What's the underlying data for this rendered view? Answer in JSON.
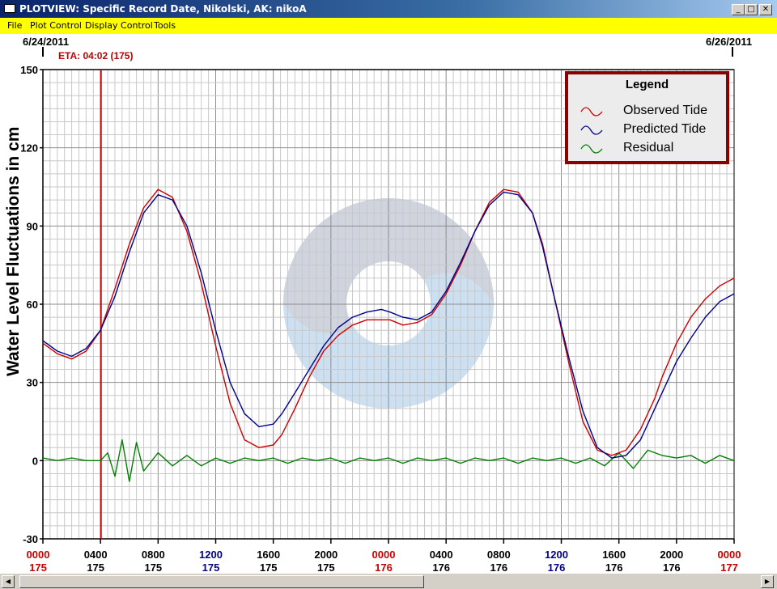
{
  "window": {
    "title": "PLOTVIEW: Specific Record Date, Nikolski, AK: nikoA",
    "buttons": {
      "minimize": "_",
      "maximize": "□",
      "close": "✕"
    }
  },
  "menu": {
    "items": [
      "File",
      "Plot Control",
      "Display Control",
      "Tools"
    ]
  },
  "header": {
    "start_date": "6/24/2011",
    "end_date": "6/26/2011",
    "eta": "ETA: 04:02 (175)"
  },
  "legend": {
    "title": "Legend",
    "entries": [
      {
        "label": "Observed Tide",
        "color": "#cc0000"
      },
      {
        "label": "Predicted Tide",
        "color": "#00008b"
      },
      {
        "label": "Residual",
        "color": "#008000"
      }
    ]
  },
  "chart_data": {
    "type": "line",
    "title": "",
    "xlabel": "",
    "ylabel": "Water Level Fluctuations in cm",
    "ylim": [
      -30,
      150
    ],
    "yticks": [
      -30,
      0,
      30,
      60,
      90,
      120,
      150
    ],
    "xlim_hours": [
      0,
      48
    ],
    "grid": true,
    "legend_position": "top-right",
    "eta_marker": {
      "hour": 4.03,
      "color": "#cc0000"
    },
    "xticks": [
      {
        "hour": 0,
        "time": "0000",
        "day": "175",
        "color": "#cc0000",
        "day_color": "#cc0000"
      },
      {
        "hour": 4,
        "time": "0400",
        "day": "175",
        "color": "#000000",
        "day_color": "#000000"
      },
      {
        "hour": 8,
        "time": "0800",
        "day": "175",
        "color": "#000000",
        "day_color": "#000000"
      },
      {
        "hour": 12,
        "time": "1200",
        "day": "175",
        "color": "#00008b",
        "day_color": "#00008b"
      },
      {
        "hour": 16,
        "time": "1600",
        "day": "175",
        "color": "#000000",
        "day_color": "#000000"
      },
      {
        "hour": 20,
        "time": "2000",
        "day": "175",
        "color": "#000000",
        "day_color": "#000000"
      },
      {
        "hour": 24,
        "time": "0000",
        "day": "176",
        "color": "#cc0000",
        "day_color": "#cc0000"
      },
      {
        "hour": 28,
        "time": "0400",
        "day": "176",
        "color": "#000000",
        "day_color": "#000000"
      },
      {
        "hour": 32,
        "time": "0800",
        "day": "176",
        "color": "#000000",
        "day_color": "#000000"
      },
      {
        "hour": 36,
        "time": "1200",
        "day": "176",
        "color": "#00008b",
        "day_color": "#00008b"
      },
      {
        "hour": 40,
        "time": "1600",
        "day": "176",
        "color": "#000000",
        "day_color": "#000000"
      },
      {
        "hour": 44,
        "time": "2000",
        "day": "176",
        "color": "#000000",
        "day_color": "#000000"
      },
      {
        "hour": 48,
        "time": "0000",
        "day": "177",
        "color": "#cc0000",
        "day_color": "#cc0000"
      }
    ],
    "series": [
      {
        "name": "Predicted Tide",
        "color": "#00008b",
        "x": [
          0,
          1,
          2,
          3,
          4,
          5,
          6,
          7,
          8,
          9,
          10,
          11,
          12,
          13,
          14,
          15,
          16,
          16.6,
          17.5,
          18.5,
          19.5,
          20.5,
          21.5,
          22.5,
          23.5,
          24.1,
          25,
          26,
          27,
          28,
          29,
          30,
          31,
          32,
          33,
          34,
          34.7,
          35.5,
          36.5,
          37.5,
          38.5,
          39.5,
          40.5,
          41.5,
          42.5,
          43,
          44,
          45,
          46,
          47,
          48
        ],
        "values": [
          46,
          42,
          40,
          43,
          50,
          63,
          80,
          95,
          102,
          100,
          90,
          72,
          50,
          30,
          18,
          13,
          14,
          18,
          26,
          35,
          44,
          51,
          55,
          57,
          58,
          57,
          55,
          54,
          57,
          65,
          76,
          88,
          98,
          103,
          102,
          95,
          82,
          63,
          40,
          19,
          5,
          1,
          2,
          8,
          20,
          26,
          38,
          47,
          55,
          61,
          64
        ]
      },
      {
        "name": "Observed Tide",
        "color": "#cc0000",
        "x": [
          0,
          1,
          2,
          3,
          4,
          5,
          6,
          7,
          8,
          9,
          10,
          11,
          12,
          13,
          14,
          15,
          16,
          16.6,
          17.5,
          18.5,
          19.5,
          20.5,
          21.5,
          22.5,
          23.5,
          24.1,
          25,
          26,
          27,
          28,
          29,
          30,
          31,
          32,
          33,
          34,
          34.7,
          35.5,
          36.5,
          37.5,
          38.5,
          39.5,
          40.5,
          41.5,
          42.5,
          43,
          44,
          45,
          46,
          47,
          48
        ],
        "values": [
          45,
          41,
          39,
          42,
          50,
          66,
          83,
          97,
          104,
          101,
          88,
          68,
          44,
          22,
          8,
          5,
          6,
          10,
          20,
          32,
          42,
          48,
          52,
          54,
          54,
          54,
          52,
          53,
          56,
          64,
          75,
          88,
          99,
          104,
          103,
          95,
          83,
          63,
          38,
          15,
          4,
          2,
          4,
          12,
          24,
          32,
          45,
          55,
          62,
          67,
          70
        ]
      },
      {
        "name": "Residual",
        "color": "#008000",
        "x": [
          0,
          1,
          2,
          3,
          4,
          4.5,
          5,
          5.5,
          6,
          6.5,
          7,
          8,
          9,
          10,
          11,
          12,
          13,
          14,
          15,
          16,
          17,
          18,
          19,
          20,
          21,
          22,
          23,
          24,
          25,
          26,
          27,
          28,
          29,
          30,
          31,
          32,
          33,
          34,
          35,
          36,
          37,
          38,
          39,
          40,
          41,
          42,
          43,
          44,
          45,
          46,
          47,
          48
        ],
        "values": [
          1,
          0,
          1,
          0,
          0,
          3,
          -6,
          8,
          -8,
          7,
          -4,
          3,
          -2,
          2,
          -2,
          1,
          -1,
          1,
          0,
          1,
          -1,
          1,
          0,
          1,
          -1,
          1,
          0,
          1,
          -1,
          1,
          0,
          1,
          -1,
          1,
          0,
          1,
          -1,
          1,
          0,
          1,
          -1,
          1,
          -2,
          3,
          -3,
          4,
          2,
          1,
          2,
          -1,
          2,
          0
        ]
      }
    ]
  }
}
